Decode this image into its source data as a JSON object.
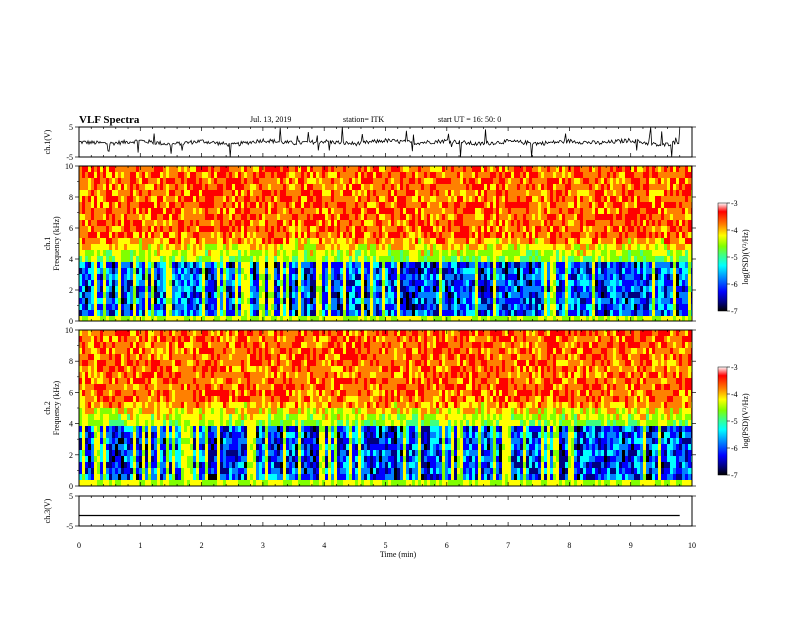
{
  "header": {
    "title": "VLF Spectra",
    "date": "Jul. 13, 2019",
    "station": "station= ITK",
    "start": "start UT = 16: 50: 0"
  },
  "colors": {
    "background": "#ffffff",
    "axis": "#000000",
    "colormap": [
      "#000000",
      "#00007f",
      "#0000ff",
      "#0080ff",
      "#00ffff",
      "#40ff80",
      "#80ff00",
      "#ffff00",
      "#ff8000",
      "#ff0000",
      "#ffffff"
    ]
  },
  "chart_data": [
    {
      "type": "line",
      "panel": "ch1-waveform",
      "ylabel": "ch.1(V)",
      "ylim": [
        -5,
        5
      ],
      "yticks": [
        {
          "v": 5,
          "label": "5"
        },
        {
          "v": -5,
          "label": "-5"
        }
      ],
      "xlim": [
        0,
        10
      ],
      "baseline": 0,
      "x": [
        0,
        0.5,
        1.0,
        1.5,
        2.0,
        2.5,
        3.0,
        3.5,
        4.0,
        4.5,
        5.0,
        5.5,
        6.0,
        6.5,
        7.0,
        7.5,
        8.0,
        8.5,
        9.0,
        9.5,
        9.8
      ],
      "y": [
        0,
        -0.5,
        0.4,
        -0.8,
        0.3,
        -1.0,
        0.6,
        -0.4,
        0.2,
        -0.6,
        0.5,
        -0.3,
        0.4,
        -0.7,
        0.2,
        -0.5,
        0.3,
        -0.4,
        0.6,
        -1.2,
        0.2
      ]
    },
    {
      "type": "heatmap",
      "panel": "ch1-spectrogram",
      "ylabel_line1": "ch.1",
      "ylabel_line2": "Frequency (kHz)",
      "ylim": [
        0,
        10
      ],
      "yticks": [
        {
          "v": 0,
          "label": "0"
        },
        {
          "v": 2,
          "label": "2"
        },
        {
          "v": 4,
          "label": "4"
        },
        {
          "v": 6,
          "label": "6"
        },
        {
          "v": 8,
          "label": "8"
        },
        {
          "v": 10,
          "label": "10"
        }
      ],
      "xlim": [
        0,
        10
      ],
      "colorbar": {
        "label": "log(PSD)(V²/Hz)",
        "range": [
          -7,
          -3
        ],
        "ticks": [
          {
            "v": -3,
            "label": "-3"
          },
          {
            "v": -4,
            "label": "-4"
          },
          {
            "v": -5,
            "label": "-5"
          },
          {
            "v": -6,
            "label": "-6"
          },
          {
            "v": -7,
            "label": "-7"
          }
        ]
      }
    },
    {
      "type": "heatmap",
      "panel": "ch2-spectrogram",
      "ylabel_line1": "ch.2",
      "ylabel_line2": "Frequency (kHz)",
      "ylim": [
        0,
        10
      ],
      "yticks": [
        {
          "v": 0,
          "label": "0"
        },
        {
          "v": 2,
          "label": "2"
        },
        {
          "v": 4,
          "label": "4"
        },
        {
          "v": 6,
          "label": "6"
        },
        {
          "v": 8,
          "label": "8"
        },
        {
          "v": 10,
          "label": "10"
        }
      ],
      "xlim": [
        0,
        10
      ],
      "colorbar": {
        "label": "log(PSD)(V²/Hz)",
        "range": [
          -7,
          -3
        ],
        "ticks": [
          {
            "v": -3,
            "label": "-3"
          },
          {
            "v": -4,
            "label": "-4"
          },
          {
            "v": -5,
            "label": "-5"
          },
          {
            "v": -6,
            "label": "-6"
          },
          {
            "v": -7,
            "label": "-7"
          }
        ]
      }
    },
    {
      "type": "line",
      "panel": "ch3-waveform",
      "ylabel": "ch.3(V)",
      "ylim": [
        -5,
        5
      ],
      "yticks": [
        {
          "v": 5,
          "label": "5"
        },
        {
          "v": -5,
          "label": "-5"
        }
      ],
      "xlim": [
        0,
        10
      ],
      "x": [
        0,
        9.8
      ],
      "y": [
        -1.5,
        -1.5
      ]
    }
  ],
  "xaxis": {
    "label": "Time (min)",
    "range": [
      0,
      10
    ],
    "ticks": [
      {
        "v": 0,
        "label": "0"
      },
      {
        "v": 1,
        "label": "1"
      },
      {
        "v": 2,
        "label": "2"
      },
      {
        "v": 3,
        "label": "3"
      },
      {
        "v": 4,
        "label": "4"
      },
      {
        "v": 5,
        "label": "5"
      },
      {
        "v": 6,
        "label": "6"
      },
      {
        "v": 7,
        "label": "7"
      },
      {
        "v": 8,
        "label": "8"
      },
      {
        "v": 9,
        "label": "9"
      },
      {
        "v": 10,
        "label": "10"
      }
    ]
  }
}
